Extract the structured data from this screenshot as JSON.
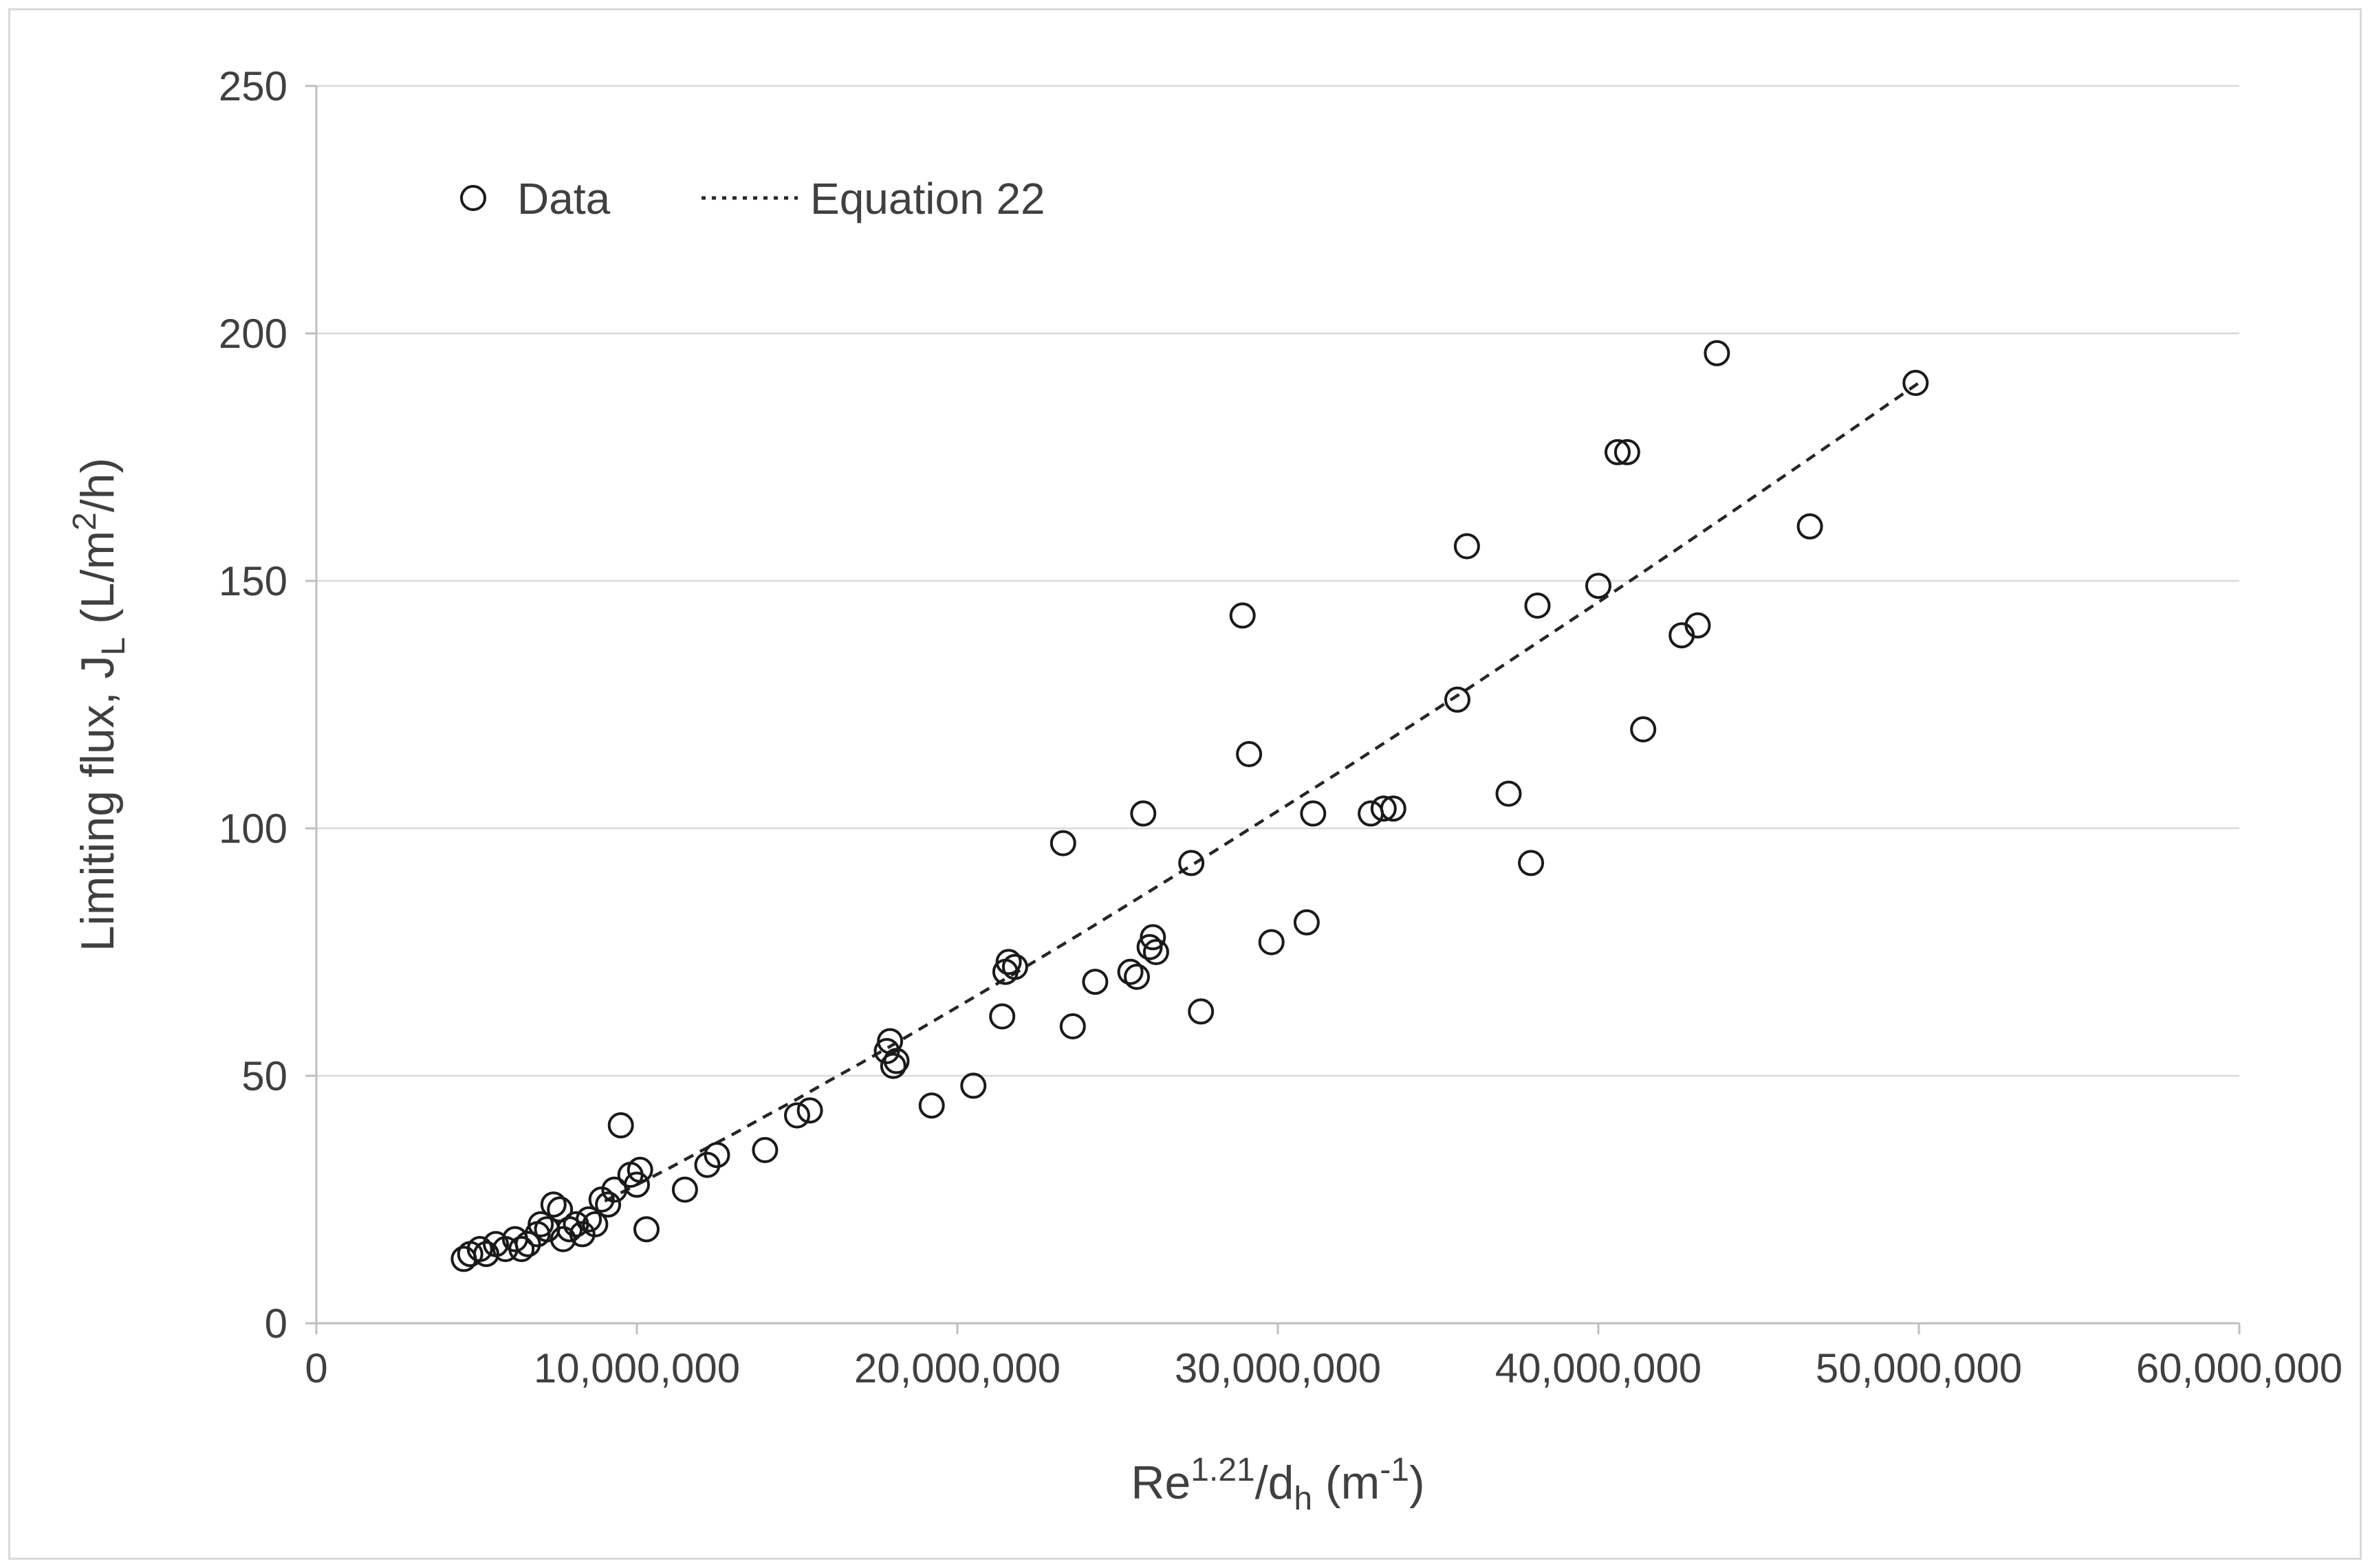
{
  "figure": {
    "legend": {
      "data_label": "Data",
      "equation_label": "Equation 22"
    },
    "colors": {
      "marker_stroke": "#1a1a1a",
      "curve": "#262626",
      "gridline": "#d9d9d9",
      "axis_line": "#bfbfbf",
      "text": "#404040",
      "frame_border": "#d9d9d9"
    }
  },
  "chart_data": {
    "type": "scatter",
    "title": "",
    "grid": "horizontal-only",
    "legend_position": "top-left-inside",
    "x_axis": {
      "min": 0,
      "max": 60000000,
      "tick_values": [
        0,
        10000000,
        20000000,
        30000000,
        40000000,
        50000000,
        60000000
      ],
      "tick_labels": [
        "0",
        "10,000,000",
        "20,000,000",
        "30,000,000",
        "40,000,000",
        "50,000,000",
        "60,000,000"
      ],
      "label_parts": [
        {
          "t": "Re"
        },
        {
          "t": "1.21",
          "sup": true
        },
        {
          "t": "/d"
        },
        {
          "t": "h",
          "sub": true
        },
        {
          "t": " (m"
        },
        {
          "t": "-1",
          "sup": true
        },
        {
          "t": ")"
        }
      ]
    },
    "y_axis": {
      "min": 0,
      "max": 250,
      "ticks": [
        0,
        50,
        100,
        150,
        200,
        250
      ],
      "label_parts": [
        {
          "t": "Limiting flux, J"
        },
        {
          "t": "L",
          "sub": true
        },
        {
          "t": " (L/m"
        },
        {
          "t": "2",
          "sup": true
        },
        {
          "t": "/h)"
        }
      ]
    },
    "series": [
      {
        "name": "Data",
        "type": "scatter",
        "marker": "open-circle",
        "points": [
          [
            4600000,
            13
          ],
          [
            4800000,
            14
          ],
          [
            5100000,
            15
          ],
          [
            5300000,
            14
          ],
          [
            5600000,
            16
          ],
          [
            5900000,
            15
          ],
          [
            6200000,
            17
          ],
          [
            6400000,
            15
          ],
          [
            6600000,
            16
          ],
          [
            6900000,
            18
          ],
          [
            7000000,
            20
          ],
          [
            7200000,
            19
          ],
          [
            7400000,
            24
          ],
          [
            7600000,
            23
          ],
          [
            7700000,
            17
          ],
          [
            7900000,
            19
          ],
          [
            8100000,
            20
          ],
          [
            8300000,
            18
          ],
          [
            8500000,
            21
          ],
          [
            8700000,
            20
          ],
          [
            8900000,
            25
          ],
          [
            9100000,
            24
          ],
          [
            9300000,
            27
          ],
          [
            9500000,
            40
          ],
          [
            9800000,
            30
          ],
          [
            10000000,
            28
          ],
          [
            10100000,
            31
          ],
          [
            10300000,
            19
          ],
          [
            11500000,
            27
          ],
          [
            12200000,
            32
          ],
          [
            12500000,
            34
          ],
          [
            14000000,
            35
          ],
          [
            15000000,
            42
          ],
          [
            15400000,
            43
          ],
          [
            17800000,
            55
          ],
          [
            17900000,
            57
          ],
          [
            18000000,
            52
          ],
          [
            18100000,
            53
          ],
          [
            19200000,
            44
          ],
          [
            20500000,
            48
          ],
          [
            21400000,
            62
          ],
          [
            21500000,
            71
          ],
          [
            21600000,
            73
          ],
          [
            21800000,
            72
          ],
          [
            23300000,
            97
          ],
          [
            23600000,
            60
          ],
          [
            24300000,
            69
          ],
          [
            25400000,
            71
          ],
          [
            25600000,
            70
          ],
          [
            25800000,
            103
          ],
          [
            26000000,
            76
          ],
          [
            26100000,
            78
          ],
          [
            26200000,
            75
          ],
          [
            27300000,
            93
          ],
          [
            27600000,
            63
          ],
          [
            28900000,
            143
          ],
          [
            29100000,
            115
          ],
          [
            29800000,
            77
          ],
          [
            30900000,
            81
          ],
          [
            31100000,
            103
          ],
          [
            32900000,
            103
          ],
          [
            33300000,
            104
          ],
          [
            33600000,
            104
          ],
          [
            35600000,
            126
          ],
          [
            35900000,
            157
          ],
          [
            37200000,
            107
          ],
          [
            37900000,
            93
          ],
          [
            38100000,
            145
          ],
          [
            40000000,
            149
          ],
          [
            40600000,
            176
          ],
          [
            40900000,
            176
          ],
          [
            41400000,
            120
          ],
          [
            42600000,
            139
          ],
          [
            43100000,
            141
          ],
          [
            43700000,
            196
          ],
          [
            46600000,
            161
          ],
          [
            49900000,
            190
          ]
        ]
      },
      {
        "name": "Equation 22",
        "type": "line",
        "dashed": true,
        "points": [
          [
            9000000,
            24.7
          ],
          [
            10000000,
            28.0
          ],
          [
            11000000,
            31.3
          ],
          [
            12000000,
            34.8
          ],
          [
            13000000,
            38.2
          ],
          [
            14000000,
            41.8
          ],
          [
            15000000,
            45.3
          ],
          [
            16000000,
            49.0
          ],
          [
            17000000,
            52.6
          ],
          [
            18000000,
            56.3
          ],
          [
            19000000,
            60.1
          ],
          [
            20000000,
            63.9
          ],
          [
            22000000,
            71.5
          ],
          [
            24000000,
            79.3
          ],
          [
            26000000,
            87.3
          ],
          [
            28000000,
            95.3
          ],
          [
            30000000,
            103.5
          ],
          [
            32000000,
            111.7
          ],
          [
            34000000,
            120.1
          ],
          [
            36000000,
            128.5
          ],
          [
            38000000,
            137.1
          ],
          [
            40000000,
            145.7
          ],
          [
            42000000,
            154.4
          ],
          [
            44000000,
            163.2
          ],
          [
            46000000,
            172.1
          ],
          [
            48000000,
            181.0
          ],
          [
            50000000,
            190.0
          ]
        ]
      }
    ]
  }
}
